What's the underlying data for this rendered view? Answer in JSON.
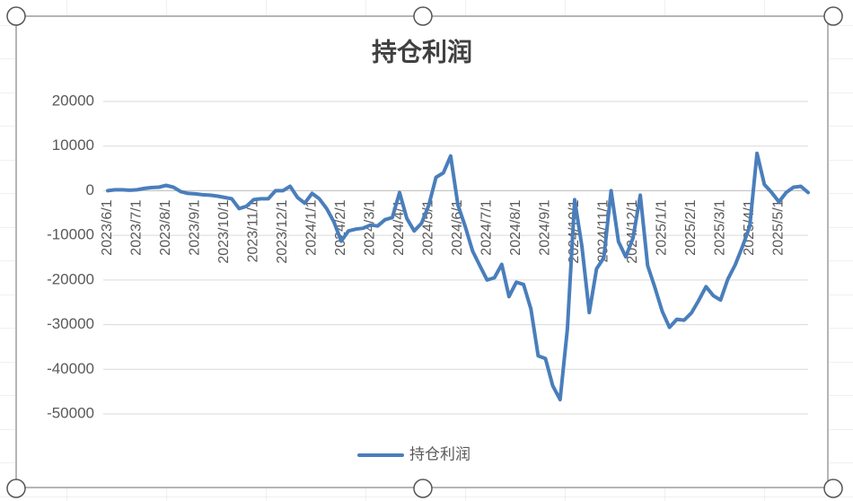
{
  "chart_data": {
    "type": "line",
    "title": "持仓利润",
    "categories": [
      "2023/6/1",
      null,
      null,
      null,
      "2023/7/1",
      null,
      null,
      null,
      "2023/8/1",
      null,
      null,
      null,
      "2023/9/1",
      null,
      null,
      null,
      "2023/10/1",
      null,
      null,
      null,
      "2023/11/1",
      null,
      null,
      null,
      "2023/12/1",
      null,
      null,
      null,
      "2024/1/1",
      null,
      null,
      null,
      "2024/2/1",
      null,
      null,
      null,
      "2024/3/1",
      null,
      null,
      null,
      "2024/4/1",
      null,
      null,
      null,
      "2024/5/1",
      null,
      null,
      null,
      "2024/6/1",
      null,
      null,
      null,
      "2024/7/1",
      null,
      null,
      null,
      "2024/8/1",
      null,
      null,
      null,
      "2024/9/1",
      null,
      null,
      null,
      "2024/10/1",
      null,
      null,
      null,
      "2024/11/1",
      null,
      null,
      null,
      "2024/12/1",
      null,
      null,
      null,
      "2025/1/1",
      null,
      null,
      null,
      "2025/2/1",
      null,
      null,
      null,
      "2025/3/1",
      null,
      null,
      null,
      "2025/4/1",
      null,
      null,
      null,
      "2025/5/1",
      null,
      null,
      null,
      null
    ],
    "series": [
      {
        "name": "持仓利润",
        "color": "#4a7ebb",
        "values": [
          0,
          200,
          200,
          100,
          200,
          500,
          700,
          800,
          1200,
          800,
          -200,
          -600,
          -700,
          -900,
          -1000,
          -1200,
          -1500,
          -1800,
          -4000,
          -3500,
          -2000,
          -1800,
          -1800,
          0,
          0,
          1000,
          -1500,
          -2800,
          -600,
          -1800,
          -4000,
          -7000,
          -11300,
          -9000,
          -8600,
          -8400,
          -7700,
          -7900,
          -6500,
          -6000,
          -400,
          -6200,
          -9000,
          -7300,
          -3300,
          3000,
          4000,
          7800,
          -3200,
          -8000,
          -13500,
          -16800,
          -20000,
          -19500,
          -16500,
          -23700,
          -20500,
          -21000,
          -26500,
          -37000,
          -37600,
          -43700,
          -46800,
          -31000,
          -2000,
          -12500,
          -27300,
          -17500,
          -15000,
          0,
          -11400,
          -14800,
          -10600,
          -1000,
          -16800,
          -21700,
          -27000,
          -30600,
          -28800,
          -29000,
          -27400,
          -24600,
          -21500,
          -23500,
          -24500,
          -19800,
          -16600,
          -12500,
          -8000,
          8400,
          1400,
          -400,
          -2500,
          -400,
          800,
          1000,
          -400
        ]
      }
    ],
    "ylim": [
      -50000,
      20000
    ],
    "yticks": [
      -50000,
      -40000,
      -30000,
      -20000,
      -10000,
      0,
      10000,
      20000
    ],
    "grid": true,
    "legend": "bottom"
  }
}
